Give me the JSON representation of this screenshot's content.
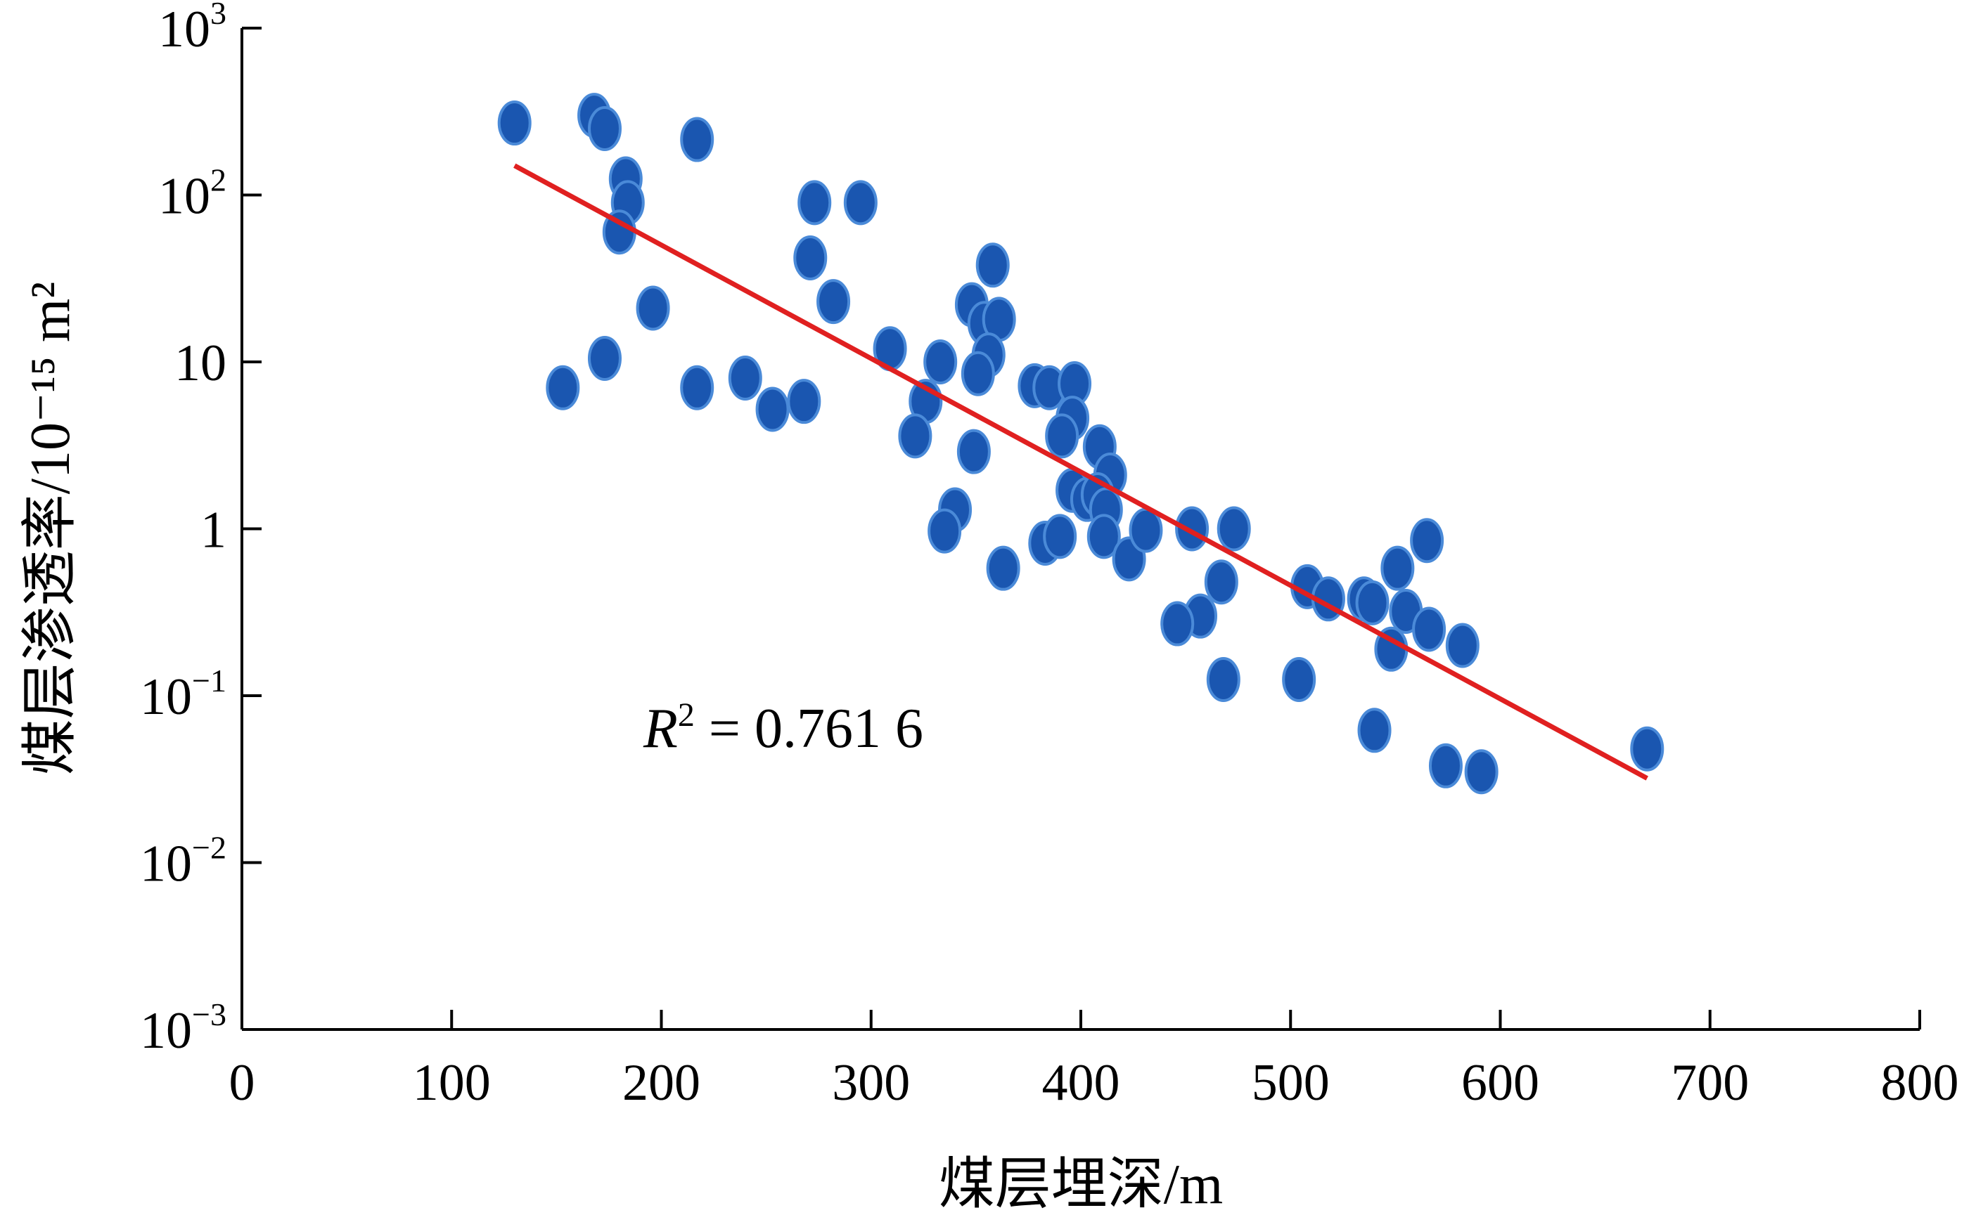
{
  "chart_data": {
    "type": "scatter",
    "title": "",
    "xlabel": "煤层埋深/m",
    "ylabel": "煤层渗透率/10⁻¹⁵ m²",
    "xlim": [
      0,
      800
    ],
    "ylim": [
      0.001,
      1000
    ],
    "yscale": "log",
    "grid": false,
    "x_ticks": [
      "0",
      "100",
      "200",
      "300",
      "400",
      "500",
      "600",
      "700",
      "800"
    ],
    "y_ticks": [
      {
        "base": "10",
        "exp": "−3"
      },
      {
        "base": "10",
        "exp": "−2"
      },
      {
        "base": "10",
        "exp": "−1"
      },
      {
        "base": "1",
        "exp": ""
      },
      {
        "base": "10",
        "exp": ""
      },
      {
        "base": "10",
        "exp": "2"
      },
      {
        "base": "10",
        "exp": "3"
      }
    ],
    "colors": {
      "points": "#1a56b0",
      "point_edge": "#4a8ad8",
      "fit_line": "#e02020"
    },
    "fit_line": {
      "x": [
        130,
        670
      ],
      "y": [
        150,
        0.032
      ]
    },
    "annotation": {
      "italic": "R",
      "sup": "2",
      "rest": " = 0.761 6"
    },
    "points": [
      {
        "x": 130,
        "y": 270
      },
      {
        "x": 168,
        "y": 300
      },
      {
        "x": 173,
        "y": 250
      },
      {
        "x": 217,
        "y": 215
      },
      {
        "x": 183,
        "y": 125
      },
      {
        "x": 184,
        "y": 90
      },
      {
        "x": 180,
        "y": 60
      },
      {
        "x": 196,
        "y": 21
      },
      {
        "x": 153,
        "y": 7
      },
      {
        "x": 173,
        "y": 10.5
      },
      {
        "x": 217,
        "y": 7
      },
      {
        "x": 240,
        "y": 8
      },
      {
        "x": 253,
        "y": 5.2
      },
      {
        "x": 268,
        "y": 5.8
      },
      {
        "x": 273,
        "y": 90
      },
      {
        "x": 295,
        "y": 90
      },
      {
        "x": 271,
        "y": 42
      },
      {
        "x": 282,
        "y": 23
      },
      {
        "x": 309,
        "y": 12
      },
      {
        "x": 333,
        "y": 10
      },
      {
        "x": 326,
        "y": 5.8
      },
      {
        "x": 321,
        "y": 3.6
      },
      {
        "x": 358,
        "y": 38
      },
      {
        "x": 348,
        "y": 22
      },
      {
        "x": 354,
        "y": 17
      },
      {
        "x": 361,
        "y": 18
      },
      {
        "x": 356,
        "y": 11
      },
      {
        "x": 351,
        "y": 8.5
      },
      {
        "x": 349,
        "y": 2.9
      },
      {
        "x": 340,
        "y": 1.3
      },
      {
        "x": 335,
        "y": 0.97
      },
      {
        "x": 363,
        "y": 0.58
      },
      {
        "x": 378,
        "y": 7.2
      },
      {
        "x": 385,
        "y": 7
      },
      {
        "x": 397,
        "y": 7.4
      },
      {
        "x": 396,
        "y": 4.6
      },
      {
        "x": 391,
        "y": 3.6
      },
      {
        "x": 409,
        "y": 3.1
      },
      {
        "x": 414,
        "y": 2.1
      },
      {
        "x": 396,
        "y": 1.7
      },
      {
        "x": 403,
        "y": 1.5
      },
      {
        "x": 408,
        "y": 1.6
      },
      {
        "x": 412,
        "y": 1.3
      },
      {
        "x": 411,
        "y": 0.9
      },
      {
        "x": 383,
        "y": 0.82
      },
      {
        "x": 390,
        "y": 0.9
      },
      {
        "x": 423,
        "y": 0.66
      },
      {
        "x": 431,
        "y": 0.98
      },
      {
        "x": 453,
        "y": 1.0
      },
      {
        "x": 473,
        "y": 1.0
      },
      {
        "x": 467,
        "y": 0.48
      },
      {
        "x": 457,
        "y": 0.3
      },
      {
        "x": 446,
        "y": 0.27
      },
      {
        "x": 468,
        "y": 0.125
      },
      {
        "x": 504,
        "y": 0.125
      },
      {
        "x": 508,
        "y": 0.45
      },
      {
        "x": 518,
        "y": 0.38
      },
      {
        "x": 535,
        "y": 0.38
      },
      {
        "x": 539,
        "y": 0.36
      },
      {
        "x": 551,
        "y": 0.58
      },
      {
        "x": 565,
        "y": 0.85
      },
      {
        "x": 555,
        "y": 0.32
      },
      {
        "x": 566,
        "y": 0.25
      },
      {
        "x": 548,
        "y": 0.19
      },
      {
        "x": 582,
        "y": 0.2
      },
      {
        "x": 540,
        "y": 0.062
      },
      {
        "x": 574,
        "y": 0.038
      },
      {
        "x": 591,
        "y": 0.035
      },
      {
        "x": 670,
        "y": 0.048
      }
    ]
  }
}
